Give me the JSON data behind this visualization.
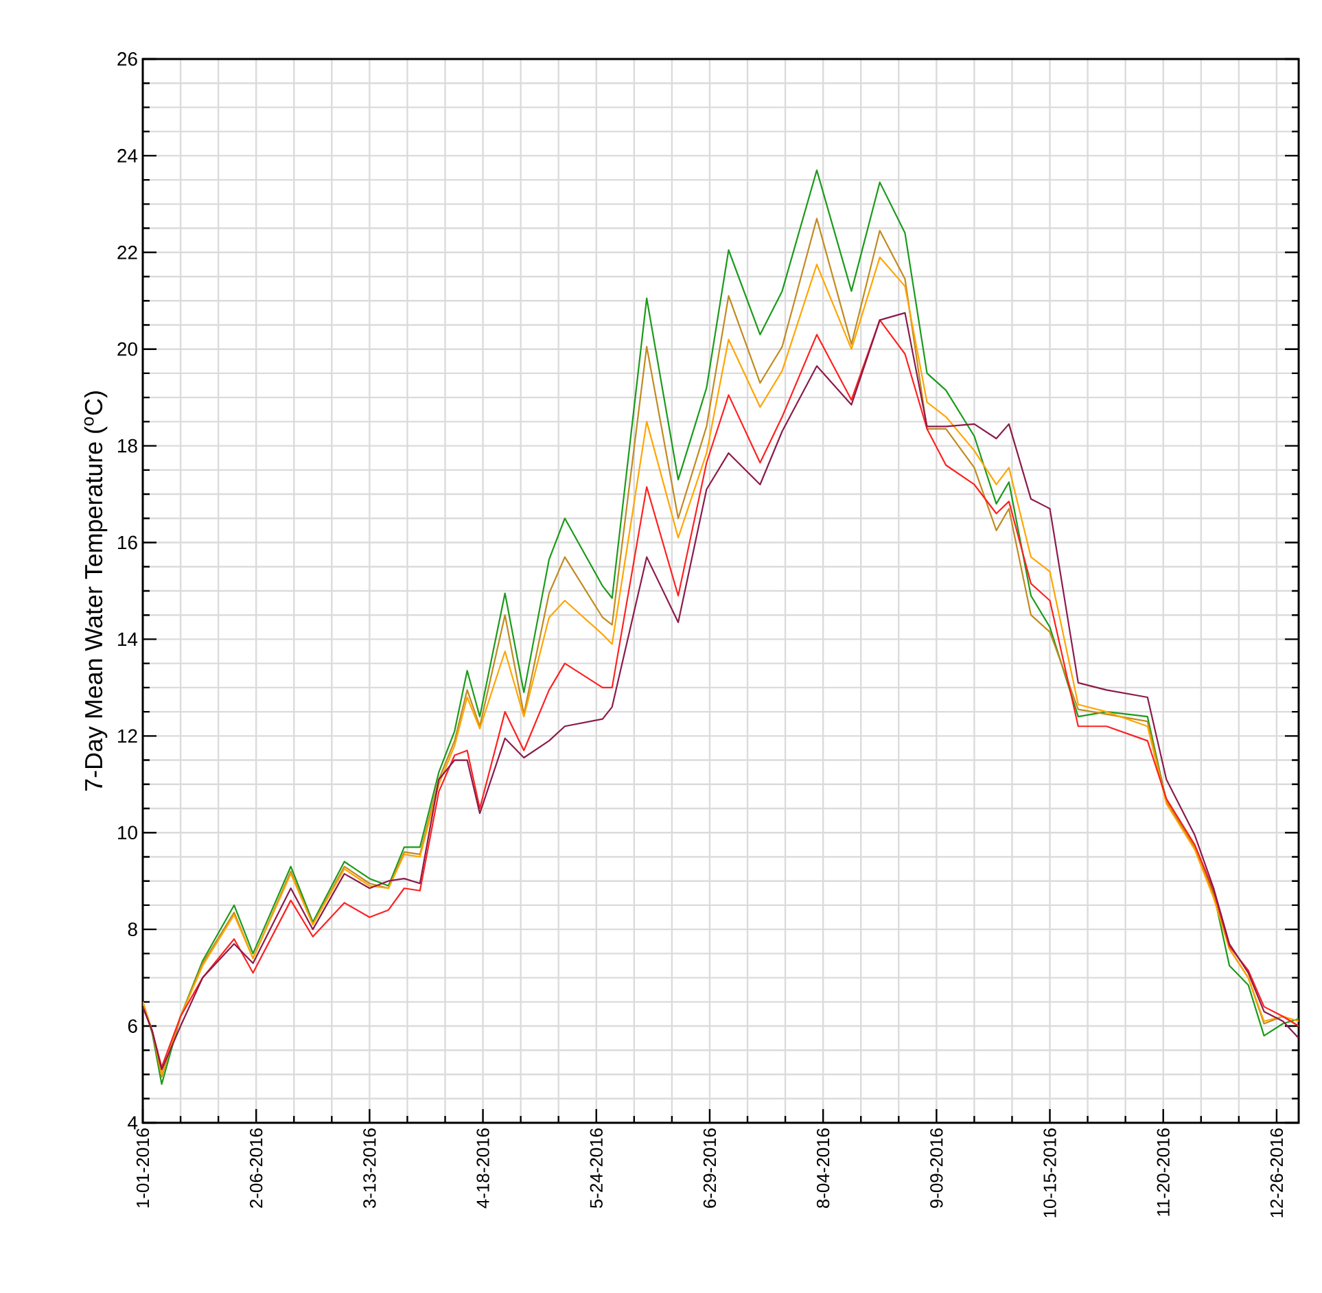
{
  "chart_data": {
    "type": "line",
    "ylabel": "7-Day Mean Water Temperature ($^{o}$C)",
    "x": [
      "2016-01-01",
      "2016-01-04",
      "2016-01-07",
      "2016-01-13",
      "2016-01-20",
      "2016-01-30",
      "2016-02-05",
      "2016-02-17",
      "2016-02-24",
      "2016-03-05",
      "2016-03-13",
      "2016-03-19",
      "2016-03-24",
      "2016-03-29",
      "2016-04-04",
      "2016-04-09",
      "2016-04-13",
      "2016-04-17",
      "2016-04-25",
      "2016-05-01",
      "2016-05-09",
      "2016-05-14",
      "2016-05-26",
      "2016-05-29",
      "2016-06-09",
      "2016-06-19",
      "2016-06-28",
      "2016-07-05",
      "2016-07-15",
      "2016-07-22",
      "2016-08-02",
      "2016-08-13",
      "2016-08-22",
      "2016-08-30",
      "2016-09-06",
      "2016-09-12",
      "2016-09-21",
      "2016-09-28",
      "2016-10-02",
      "2016-10-09",
      "2016-10-15",
      "2016-10-24",
      "2016-11-02",
      "2016-11-15",
      "2016-11-21",
      "2016-11-30",
      "2016-12-06",
      "2016-12-11",
      "2016-12-17",
      "2016-12-22",
      "2016-12-28",
      "2017-01-02"
    ],
    "series": [
      {
        "color": "#1a9a1a",
        "values": [
          6.5,
          5.85,
          4.8,
          6.2,
          7.35,
          8.5,
          7.5,
          9.3,
          8.15,
          9.4,
          9.05,
          8.9,
          9.7,
          9.7,
          11.25,
          12.1,
          13.35,
          12.4,
          14.95,
          12.9,
          15.65,
          16.5,
          15.1,
          14.85,
          21.05,
          17.3,
          19.2,
          22.05,
          20.3,
          21.2,
          23.7,
          21.2,
          23.45,
          22.4,
          19.5,
          19.15,
          18.2,
          16.8,
          17.25,
          14.9,
          14.25,
          12.4,
          12.5,
          12.4,
          10.65,
          9.7,
          8.75,
          7.25,
          6.85,
          5.8,
          6.05,
          6.15
        ]
      },
      {
        "color": "#c08a20",
        "values": [
          6.5,
          5.9,
          4.95,
          6.2,
          7.3,
          8.35,
          7.4,
          9.2,
          8.1,
          9.3,
          8.95,
          8.85,
          9.6,
          9.55,
          11.1,
          11.9,
          12.95,
          12.2,
          14.5,
          12.45,
          14.95,
          15.7,
          14.45,
          14.3,
          20.05,
          16.5,
          18.4,
          21.1,
          19.3,
          20.05,
          22.7,
          20.1,
          22.45,
          21.45,
          18.35,
          18.35,
          17.55,
          16.25,
          16.7,
          14.5,
          14.15,
          12.55,
          12.45,
          12.3,
          10.65,
          9.7,
          8.7,
          7.6,
          7.0,
          6.05,
          6.2,
          6.0
        ]
      },
      {
        "color": "#ffa500",
        "values": [
          6.5,
          5.9,
          5.0,
          6.2,
          7.25,
          8.3,
          7.4,
          9.15,
          8.1,
          9.25,
          8.9,
          8.85,
          9.55,
          9.5,
          11.0,
          11.8,
          12.8,
          12.15,
          13.75,
          12.4,
          14.45,
          14.8,
          14.1,
          13.9,
          18.5,
          16.1,
          17.85,
          20.2,
          18.8,
          19.55,
          21.75,
          20.0,
          21.9,
          21.3,
          18.9,
          18.6,
          17.9,
          17.2,
          17.55,
          15.7,
          15.4,
          12.65,
          12.5,
          12.2,
          10.6,
          9.65,
          8.65,
          7.6,
          7.0,
          6.1,
          6.2,
          6.1
        ]
      },
      {
        "color": "#ff2020",
        "values": [
          6.4,
          5.9,
          5.15,
          6.2,
          7.0,
          7.8,
          7.1,
          8.6,
          7.85,
          8.55,
          8.25,
          8.4,
          8.85,
          8.8,
          10.85,
          11.6,
          11.7,
          10.5,
          12.5,
          11.7,
          12.95,
          13.5,
          13.0,
          13.0,
          17.15,
          14.9,
          17.65,
          19.05,
          17.65,
          18.6,
          20.3,
          18.95,
          20.6,
          19.9,
          18.35,
          17.6,
          17.2,
          16.6,
          16.85,
          15.15,
          14.8,
          12.2,
          12.2,
          11.9,
          10.7,
          9.75,
          8.8,
          7.65,
          7.15,
          6.4,
          6.2,
          6.0
        ]
      },
      {
        "color": "#8b1a4a",
        "values": [
          6.4,
          5.9,
          5.1,
          6.0,
          7.0,
          7.7,
          7.3,
          8.85,
          8.0,
          9.15,
          8.85,
          9.0,
          9.05,
          8.95,
          11.1,
          11.5,
          11.5,
          10.4,
          11.95,
          11.55,
          11.9,
          12.2,
          12.35,
          12.6,
          15.7,
          14.35,
          17.1,
          17.85,
          17.2,
          18.3,
          19.65,
          18.85,
          20.6,
          20.75,
          18.4,
          18.4,
          18.45,
          18.15,
          18.45,
          16.9,
          16.7,
          13.1,
          12.95,
          12.8,
          11.1,
          9.95,
          8.85,
          7.7,
          7.1,
          6.3,
          6.1,
          5.75
        ]
      }
    ],
    "xlim": [
      "2016-01-01",
      "2017-01-02"
    ],
    "xticks": [
      {
        "value": "2016-01-01",
        "label": "1-01-2016"
      },
      {
        "value": "2016-02-06",
        "label": "2-06-2016"
      },
      {
        "value": "2016-03-13",
        "label": "3-13-2016"
      },
      {
        "value": "2016-04-18",
        "label": "4-18-2016"
      },
      {
        "value": "2016-05-24",
        "label": "5-24-2016"
      },
      {
        "value": "2016-06-29",
        "label": "6-29-2016"
      },
      {
        "value": "2016-08-04",
        "label": "8-04-2016"
      },
      {
        "value": "2016-09-09",
        "label": "9-09-2016"
      },
      {
        "value": "2016-10-15",
        "label": "10-15-2016"
      },
      {
        "value": "2016-11-20",
        "label": "11-20-2016"
      },
      {
        "value": "2016-12-26",
        "label": "12-26-2016"
      }
    ],
    "ylim": [
      4,
      26
    ],
    "yticks": [
      4,
      6,
      8,
      10,
      12,
      14,
      16,
      18,
      20,
      22,
      24,
      26
    ],
    "grid": true,
    "marker": "none",
    "line_style": "solid"
  }
}
